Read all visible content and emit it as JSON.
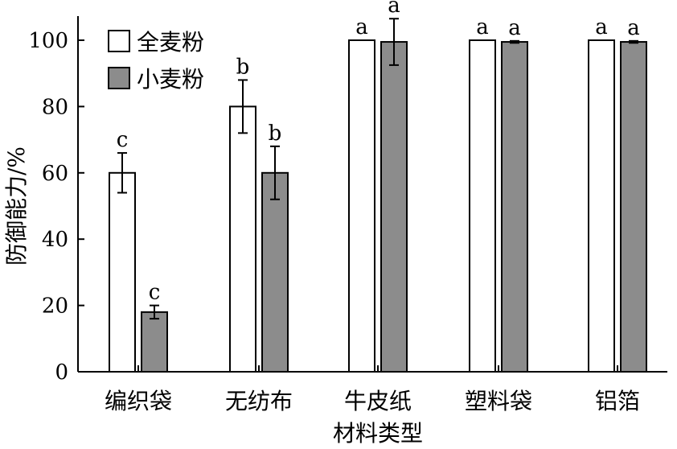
{
  "chart_data": {
    "type": "bar",
    "xlabel": "材料类型",
    "ylabel": "防御能力/%",
    "ylim": [
      0,
      100
    ],
    "yticks": [
      0,
      20,
      40,
      60,
      80,
      100
    ],
    "grid": false,
    "legend_position": "top-left",
    "categories": [
      "编织袋",
      "无纺布",
      "牛皮纸",
      "塑料袋",
      "铝箔"
    ],
    "series": [
      {
        "name": "全麦粉",
        "color": "#ffffff",
        "values": [
          60,
          80,
          100,
          100,
          100
        ],
        "errors": [
          6,
          8,
          0,
          0,
          0
        ],
        "letters": [
          "c",
          "b",
          "a",
          "a",
          "a"
        ]
      },
      {
        "name": "小麦粉",
        "color": "#8c8c8c",
        "values": [
          18,
          60,
          99.5,
          99.5,
          99.5
        ],
        "errors": [
          2,
          8,
          7,
          0.3,
          0.3
        ],
        "letters": [
          "c",
          "b",
          "a",
          "a",
          "a"
        ]
      }
    ]
  }
}
